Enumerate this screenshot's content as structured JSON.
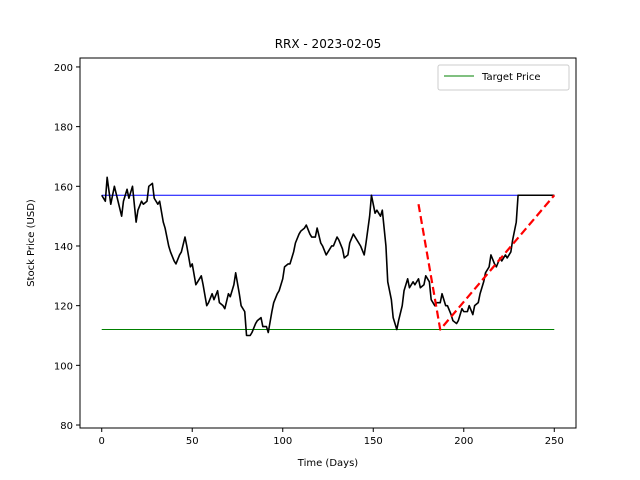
{
  "chart_data": {
    "type": "line",
    "title": "RRX - 2023-02-05",
    "xlabel": "Time (Days)",
    "ylabel": "Stock Price (USD)",
    "xlim": [
      -12,
      262
    ],
    "ylim": [
      79,
      203
    ],
    "xticks": [
      0,
      50,
      100,
      150,
      200,
      250
    ],
    "yticks": [
      80,
      100,
      120,
      140,
      160,
      180,
      200
    ],
    "grid": false,
    "legend": {
      "placement": "top-right",
      "entries": [
        {
          "label": "Target Price",
          "color": "#008000"
        }
      ]
    },
    "series": [
      {
        "role": "price",
        "color": "#000000",
        "x": [
          0,
          2,
          3,
          5,
          7,
          9,
          11,
          12,
          14,
          15,
          17,
          19,
          20,
          22,
          23,
          25,
          26,
          28,
          29,
          31,
          32,
          34,
          35,
          37,
          38,
          40,
          41,
          43,
          44,
          46,
          47,
          49,
          50,
          52,
          53,
          55,
          56,
          58,
          59,
          61,
          62,
          64,
          65,
          67,
          68,
          70,
          71,
          73,
          74,
          76,
          77,
          79,
          80,
          82,
          83,
          85,
          86,
          88,
          89,
          91,
          92,
          94,
          95,
          97,
          98,
          100,
          101,
          103,
          104,
          106,
          107,
          109,
          110,
          112,
          113,
          115,
          116,
          118,
          119,
          121,
          122,
          124,
          125,
          127,
          128,
          130,
          131,
          133,
          134,
          136,
          137,
          139,
          140,
          142,
          143,
          145,
          146,
          148,
          149,
          151,
          152,
          154,
          155,
          157,
          158,
          160,
          161,
          163,
          164,
          166,
          167,
          169,
          170,
          172,
          173,
          175,
          176,
          178,
          179,
          181,
          182,
          184,
          185,
          187,
          188,
          190,
          191,
          193,
          194,
          196,
          197,
          199,
          200,
          202,
          203,
          205,
          206,
          208,
          209,
          211,
          212,
          214,
          215,
          217,
          218,
          220,
          221,
          223,
          224,
          226,
          227,
          229,
          230,
          232,
          233,
          235,
          236,
          238,
          239,
          241,
          242,
          244,
          245,
          247,
          248,
          250
        ],
        "y": [
          157,
          155,
          163,
          154,
          160,
          155,
          150,
          155,
          159,
          156,
          160,
          148,
          152,
          155,
          154,
          155,
          160,
          161,
          156,
          154,
          155,
          148,
          146,
          140,
          138,
          135,
          134,
          137,
          138,
          143,
          140,
          133,
          134,
          127,
          128,
          130,
          127,
          120,
          121,
          124,
          122,
          125,
          121,
          120,
          119,
          124,
          123,
          127,
          131,
          124,
          120,
          118,
          110,
          110,
          111,
          114,
          115,
          116,
          113,
          113,
          111,
          118,
          121,
          124,
          125,
          129,
          133,
          134,
          134,
          138,
          141,
          144,
          145,
          146,
          147,
          144,
          143,
          143,
          146,
          141,
          140,
          137,
          138,
          140,
          140,
          143,
          142,
          139,
          136,
          137,
          141,
          144,
          143,
          141,
          140,
          137,
          141,
          150,
          157,
          151,
          152,
          150,
          152,
          140,
          128,
          122,
          116,
          112,
          115,
          120,
          125,
          129,
          126,
          128,
          127,
          129,
          126,
          127,
          130,
          128,
          122,
          120,
          121,
          121,
          124,
          120,
          120,
          117,
          115,
          114,
          115,
          119,
          118,
          118,
          120,
          117,
          120,
          121,
          124,
          128,
          131,
          133,
          137,
          134,
          133,
          136,
          135,
          137,
          136,
          138,
          142,
          148,
          157,
          157,
          157,
          157,
          157,
          157,
          157,
          157,
          157,
          157,
          157,
          157,
          157,
          157
        ]
      },
      {
        "role": "upper-level",
        "color": "#0000ff",
        "x": [
          0,
          250
        ],
        "y": [
          157,
          157
        ]
      },
      {
        "role": "target",
        "name": "Target Price",
        "color": "#008000",
        "x": [
          0,
          250
        ],
        "y": [
          112,
          112
        ]
      },
      {
        "role": "projection",
        "color": "#ff0000",
        "dashed": true,
        "x": [
          175,
          187,
          250
        ],
        "y": [
          154,
          112,
          157
        ]
      }
    ]
  }
}
